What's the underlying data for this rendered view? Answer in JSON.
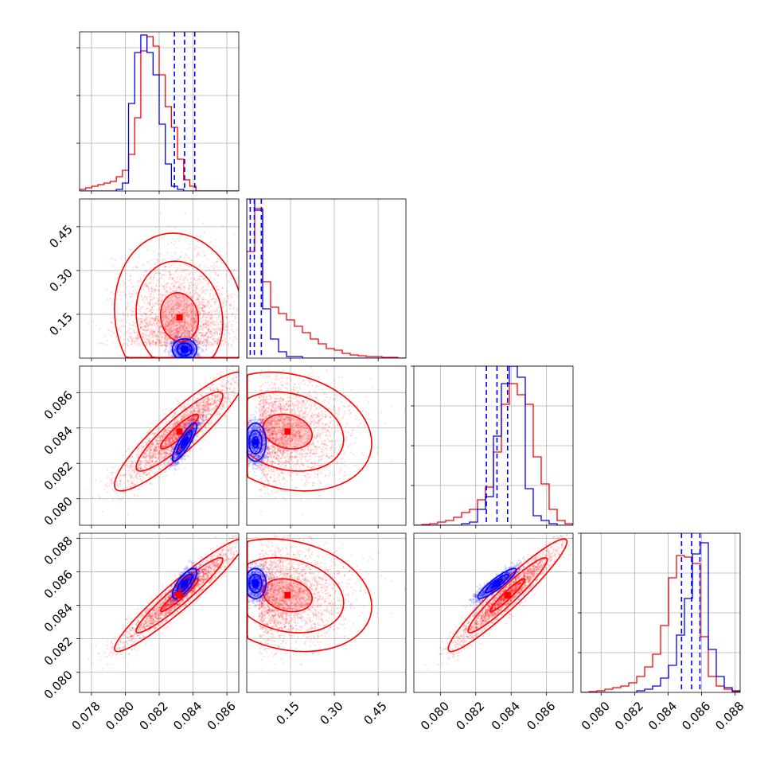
{
  "chart_data": {
    "type": "corner",
    "grid": true,
    "colors": {
      "series_a": "#0000ff",
      "series_b": "#ff0000"
    },
    "params": [
      {
        "ticks": [
          0.078,
          0.08,
          0.082,
          0.084,
          0.086
        ],
        "tick_labels": [
          "0.078",
          "0.080",
          "0.082",
          "0.084",
          "0.086"
        ],
        "range": [
          0.0773,
          0.0867
        ]
      },
      {
        "ticks": [
          0.15,
          0.3,
          0.45
        ],
        "tick_labels": [
          "0.15",
          "0.30",
          "0.45"
        ],
        "range": [
          0.0,
          0.545
        ]
      },
      {
        "ticks": [
          0.08,
          0.082,
          0.084,
          0.086
        ],
        "tick_labels": [
          "0.080",
          "0.082",
          "0.084",
          "0.086"
        ],
        "range": [
          0.0785,
          0.0875
        ]
      },
      {
        "ticks": [
          0.08,
          0.082,
          0.084,
          0.086,
          0.088
        ],
        "tick_labels": [
          "0.080",
          "0.082",
          "0.084",
          "0.086",
          "0.088"
        ],
        "range": [
          0.0788,
          0.0883
        ]
      }
    ],
    "marginals": [
      {
        "blue_hist": [
          0,
          0,
          0,
          0,
          0,
          0,
          0.01,
          0.05,
          0.55,
          0.87,
          0.98,
          0.87,
          0.73,
          0.42,
          0.17,
          0.03,
          0.01,
          0,
          0,
          0,
          0,
          0,
          0,
          0,
          0,
          0
        ],
        "red_hist": [
          0.01,
          0.02,
          0.03,
          0.04,
          0.05,
          0.06,
          0.09,
          0.13,
          0.23,
          0.46,
          0.88,
          0.97,
          0.91,
          0.73,
          0.53,
          0.4,
          0.2,
          0.07,
          0.03,
          0,
          0,
          0,
          0,
          0,
          0,
          0
        ],
        "quantiles": [
          0.0829,
          0.0835,
          0.0841
        ],
        "y_tick_fracs": [
          0.3,
          0.6,
          0.9
        ]
      },
      {
        "blue_hist": [
          1.0,
          0.93,
          0.31,
          0.12,
          0.04,
          0.01,
          0.01,
          0,
          0,
          0,
          0,
          0,
          0,
          0,
          0,
          0,
          0,
          0,
          0,
          0
        ],
        "red_hist": [
          0.67,
          0.94,
          0.48,
          0.32,
          0.28,
          0.24,
          0.2,
          0.16,
          0.12,
          0.09,
          0.06,
          0.05,
          0.03,
          0.02,
          0.015,
          0.01,
          0.01,
          0.005,
          0.005,
          0
        ],
        "quantiles": [
          0.012,
          0.026,
          0.05
        ],
        "y_tick_fracs": []
      },
      {
        "blue_hist": [
          0,
          0,
          0,
          0,
          0,
          0,
          0.01,
          0.02,
          0.1,
          0.18,
          0.56,
          0.89,
          1.0,
          0.93,
          0.23,
          0.06,
          0.03,
          0.01,
          0,
          0
        ],
        "red_hist": [
          0,
          0.005,
          0.01,
          0.02,
          0.03,
          0.05,
          0.08,
          0.1,
          0.16,
          0.24,
          0.46,
          0.76,
          0.89,
          0.82,
          0.76,
          0.43,
          0.26,
          0.1,
          0.03,
          0.01
        ],
        "quantiles": [
          0.0826,
          0.0832,
          0.0838
        ],
        "y_tick_fracs": [
          0.25,
          0.5,
          0.75,
          1.0
        ]
      },
      {
        "blue_hist": [
          0,
          0,
          0,
          0,
          0,
          0,
          0,
          0.01,
          0.02,
          0.04,
          0.09,
          0.17,
          0.36,
          0.59,
          0.87,
          0.94,
          0.27,
          0.1,
          0.03,
          0.01
        ],
        "red_hist": [
          0,
          0.005,
          0.01,
          0.02,
          0.03,
          0.04,
          0.06,
          0.1,
          0.16,
          0.24,
          0.42,
          0.72,
          0.86,
          0.85,
          0.81,
          0.35,
          0.1,
          0.04,
          0.02,
          0.005
        ],
        "quantiles": [
          0.0848,
          0.0854,
          0.0859
        ],
        "y_tick_fracs": [
          0.25,
          0.5,
          0.75,
          1.0
        ]
      }
    ],
    "distributions": {
      "blue": {
        "mean": [
          0.0835,
          0.03,
          0.0832,
          0.0853
        ],
        "sd": [
          0.0004,
          0.02,
          0.0006,
          0.0005
        ],
        "corr": [
          [
            1,
            0,
            0.85,
            0.75
          ],
          [
            0,
            1,
            0,
            0
          ],
          [
            0.85,
            0,
            1,
            0.9
          ],
          [
            0.75,
            0,
            0.9,
            1
          ]
        ]
      },
      "red": {
        "mean": [
          0.0832,
          0.14,
          0.0838,
          0.0846
        ],
        "sd": [
          0.0016,
          0.12,
          0.0014,
          0.0014
        ],
        "corr": [
          [
            1,
            -0.1,
            0.9,
            0.95
          ],
          [
            -0.1,
            1,
            -0.2,
            -0.2
          ],
          [
            0.9,
            -0.2,
            1,
            0.95
          ],
          [
            0.95,
            -0.2,
            0.95,
            1
          ]
        ]
      }
    }
  }
}
